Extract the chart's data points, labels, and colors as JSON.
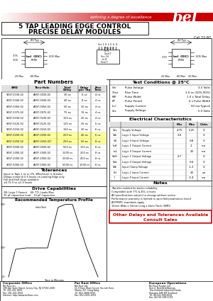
{
  "title_line1": "5 TAP LEADING EDGE CONTROL",
  "title_line2": "PRECISE DELAY MODULES",
  "cat_number": "Cat 22-92",
  "header_tagline": "defining a degree of excellence",
  "part_numbers_title": "Part Numbers",
  "part_numbers_headers": [
    "SMD",
    "Thru-Hole",
    "Total\nDelay",
    "Delay\nper Tap",
    "Rise\nTime"
  ],
  "part_numbers_data": [
    [
      "S497-0030-02",
      "A497-0030-02",
      "30 ns",
      "6 ns",
      "4 ns"
    ],
    [
      "S497-0040-02",
      "A497-0040-02",
      "40 ns",
      "8 ns",
      "4 ns"
    ],
    [
      "S497-0050-02",
      "A497-0050-02",
      "50 ns",
      "10 ns",
      "4 ns"
    ],
    [
      "S497-0075-02",
      "A497-0075-02",
      "75 ns",
      "15 ns",
      "4 ns"
    ],
    [
      "S497-0100-02",
      "A497-0100-02",
      "100 ns",
      "20 ns",
      "4 ns"
    ],
    [
      "S497-0125-02",
      "A497-0125-02",
      "125 ns",
      "25 ns",
      "5 ns"
    ],
    [
      "S497-0150-02",
      "A497-0150-02",
      "150 ns",
      "30 ns",
      "6 ns"
    ],
    [
      "S497-0200-02",
      "A497-0200-02",
      "200 ns",
      "40 ns",
      "6 ns"
    ],
    [
      "S497-0250-02",
      "A497-0250-02*",
      "250 ns",
      "50 ns",
      "8 ns"
    ],
    [
      "S497-0500-02",
      "A497-0500-02",
      "500 ns",
      "100 ns",
      "8 ns"
    ],
    [
      "S497-1000-02",
      "A497-1000-02",
      "1000 ns",
      "200 ns",
      "8 ns"
    ],
    [
      "S497-2000-02",
      "A497-2000-02",
      "2000 ns",
      "400 ns",
      "8 ns"
    ],
    [
      "S497-5000-02",
      "A497-5000-02",
      "5000 ns",
      "1000 ns",
      "8 ns"
    ]
  ],
  "highlighted_rows": [
    7,
    8
  ],
  "highlight_color": "#ffff99",
  "tolerances_title": "Tolerances",
  "tolerances_text": "Input to Taps 1 ns or 2%. Whichever is Greater\nDelays noted @ 0.5 levels on Leading Edge only\nFull and Half steps available\n±0.75 V to ±2 V levels",
  "drive_title": "Drive Capabilities",
  "drive_text1": "1N: Logic 1 Fanout    4S: TTL Loads Max.",
  "drive_text2": "15 pF capacitive load    15 pF Capacitive",
  "temp_profile_title": "Recommended Temperature Profile",
  "test_conditions_title": "Test Conditions @ 25°C",
  "test_conditions": [
    [
      "Vin",
      "Pulse Voltage",
      "3-5 Volts"
    ],
    [
      "Trise",
      "Rise Time",
      "3.0 ns (10%-90%)"
    ],
    [
      "PW",
      "Pulse Width",
      "1.0 x Total Delay"
    ],
    [
      "PP",
      "Pulse Period",
      "4 x Pulse Width"
    ],
    [
      "Iccl",
      "Supply Current",
      "50 ma Typical"
    ],
    [
      "Vcc",
      "Supply Voltage",
      "5.0 Volts"
    ]
  ],
  "elec_char_title": "Electrical Characteristics",
  "elec_char_data": [
    [
      "Vcc",
      "Supply Voltage",
      "4.75",
      "5.25",
      "V"
    ],
    [
      "VIh",
      "Logic 1 Input Voltage",
      "2.0",
      "",
      "V"
    ],
    [
      "VIl",
      "Logic 0 Input Voltage",
      "",
      "0.8",
      "V"
    ],
    [
      "IoH",
      "Logic 1 Output Current",
      "",
      "-1",
      "ma"
    ],
    [
      "IoL",
      "Logic 0 Output Current",
      "",
      "20",
      "ma"
    ],
    [
      "VoH",
      "Logic 1 Output Voltage",
      "2.7",
      "",
      "V"
    ],
    [
      "VoL",
      "Logic 0 Output Voltage",
      "",
      "0.4",
      "V"
    ],
    [
      "Vik",
      "Input Clamp Voltage",
      "",
      "-1.2",
      "V"
    ],
    [
      "IiH",
      "Logic 1 Input Current",
      "",
      "20",
      "ua"
    ],
    [
      "Ii",
      "Logic 0 Input Current",
      "",
      "-0.4",
      "ma"
    ]
  ],
  "notes_title": "Notes",
  "notes_text": [
    "Transfer molded for better reliability",
    "Compatible with TTL & ECL circuits",
    "All specifications subject to change without notice",
    "Performance warranty is limited to specified parameters listed",
    "ASTM/IPC standards apply",
    "10mm Wide x 10mm Long x 4mm Thick (SMD)"
  ],
  "other_delays_title": "Other Delays and Tolerances Available",
  "other_delays_sub": "Consult Sales",
  "corp_office_title": "Corporate Office",
  "corp_office": [
    "Bel Fuse Inc.",
    "198 Van Vorst Street, Jersey City, NJ 07302-4180",
    "Tel: 201-432-0463",
    "Fax: 201-432-9542",
    "Internet: http://www.belfuse.com"
  ],
  "far_east_title": "Far East Office",
  "far_east": [
    "Bel Fuse Ltd.",
    "11-9 Yuen Shun Circuit, Siu Lek Yuen,",
    "Shatin, N.T. Hong Kong",
    "Tel: 852-2688-0110",
    "Fax: 852-2635-4013"
  ],
  "europe_title": "European Operations",
  "europe": [
    "Bel Fuse Europe Ltd.",
    "Unit 2, Burnfield Avenue,",
    "Thornliebank Industrial Estate",
    "Glasgow G46 8JT Scotland",
    "Tel: 44-141-638-4556",
    "Fax: 44-141-638-0019"
  ],
  "red_color": "#cc0000",
  "bg_white": "#ffffff"
}
